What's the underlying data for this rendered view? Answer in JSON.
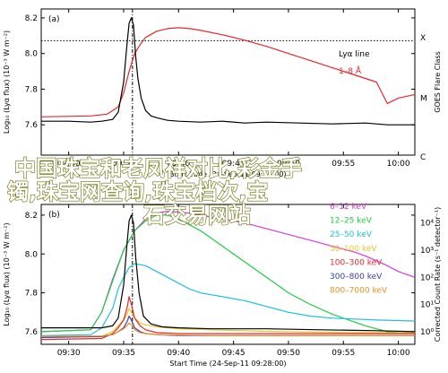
{
  "overlay": {
    "lines": [
      "中国珠宝和老凤祥对比,彩金手",
      "镯,珠宝网查询,珠宝档次,宝",
      "石交易网站"
    ],
    "color": "#ffffff"
  },
  "chart_data": [
    {
      "type": "line",
      "panel_label": "(a)",
      "title": "",
      "xlabel": "Start Time (24-Sep-11 09:28:00)",
      "ylabel": "Log₁₀ (Lyα flux) (10⁻³ W m⁻²)",
      "ylabel_right": "GOES Flare Class",
      "xlim": [
        -0.5,
        33.5
      ],
      "ylim": [
        7.43,
        8.25
      ],
      "x_ticks": [
        2,
        7,
        12,
        17,
        22,
        27,
        32
      ],
      "x_ticklabels": [
        "09:30",
        "09:35",
        "09:40",
        "09:45",
        "09:50",
        "09:55",
        "10:00"
      ],
      "y_ticks": [
        7.6,
        7.8,
        8.0,
        8.2
      ],
      "y_ticklabels": [
        "7.6",
        "7.8",
        "8.0",
        "8.2"
      ],
      "right_ticks": [
        {
          "label": "X",
          "value": 8.09
        },
        {
          "label": "M",
          "value": 7.75
        },
        {
          "label": "C",
          "value": 7.42
        }
      ],
      "hline": 8.072,
      "vline": 7.8,
      "legend": {
        "position": "right",
        "entries": [
          "Lyα line",
          "1–8 Å"
        ]
      },
      "series": [
        {
          "name": "Lyα line",
          "color": "#000000",
          "x": [
            -0.5,
            2,
            4,
            5,
            6,
            6.5,
            7,
            7.3,
            7.5,
            7.7,
            7.9,
            8.1,
            8.3,
            8.6,
            9,
            9.5,
            10,
            11,
            12,
            14,
            16,
            18,
            20,
            23,
            26,
            29,
            31,
            33.5
          ],
          "y": [
            7.62,
            7.62,
            7.615,
            7.62,
            7.63,
            7.67,
            7.84,
            8.05,
            8.17,
            8.2,
            8.16,
            7.98,
            7.86,
            7.75,
            7.68,
            7.65,
            7.64,
            7.625,
            7.62,
            7.615,
            7.62,
            7.61,
            7.615,
            7.61,
            7.605,
            7.61,
            7.6,
            7.6
          ]
        },
        {
          "name": "1–8 Å",
          "color": "#e8262a",
          "x": [
            -0.5,
            4,
            5.5,
            6.5,
            7,
            7.5,
            8,
            8.5,
            9,
            10,
            11,
            12,
            13,
            14,
            16,
            18,
            20,
            22,
            24,
            26,
            28,
            30,
            31,
            32,
            33.5
          ],
          "y": [
            7.645,
            7.65,
            7.66,
            7.7,
            7.78,
            7.9,
            8.0,
            8.05,
            8.09,
            8.125,
            8.14,
            8.145,
            8.14,
            8.13,
            8.105,
            8.075,
            8.04,
            8.0,
            7.96,
            7.92,
            7.88,
            7.84,
            7.72,
            7.75,
            7.77
          ]
        }
      ]
    },
    {
      "type": "line",
      "panel_label": "(b)",
      "title": "",
      "xlabel": "Start Time (24-Sep-11 09:28:00)",
      "ylabel": "Log₁₀ (Lyα flux) (10⁻³ W m⁻²)",
      "ylabel_right": "Corrected Count Rate (s⁻¹ detector⁻¹)",
      "xlim": [
        -0.5,
        33.5
      ],
      "ylim": [
        7.535,
        8.255
      ],
      "y_ticks": [
        7.6,
        7.8,
        8.0,
        8.2
      ],
      "y_ticklabels": [
        "7.6",
        "7.8",
        "8.0",
        "8.2"
      ],
      "right_ticks": [
        {
          "label": "10⁰",
          "value": 7.6
        },
        {
          "label": "10¹",
          "value": 7.74
        },
        {
          "label": "10²",
          "value": 7.88
        },
        {
          "label": "10³",
          "value": 8.02
        },
        {
          "label": "10⁴",
          "value": 8.16
        }
      ],
      "vline": 7.8,
      "legend": {
        "position": "right",
        "entries": [
          "6–12 keV",
          "12–25 keV",
          "25–50 keV",
          "50–100 keV",
          "100–300 keV",
          "300–800 keV",
          "800–7000 keV"
        ]
      },
      "series": [
        {
          "name": "Lyα line",
          "color": "#000000",
          "x": [
            -0.5,
            5,
            6,
            6.5,
            7,
            7.3,
            7.5,
            7.7,
            7.9,
            8.1,
            8.4,
            8.8,
            9.5,
            10.5,
            12,
            15,
            20,
            25,
            30,
            33.5
          ],
          "y": [
            7.62,
            7.62,
            7.63,
            7.67,
            7.84,
            8.05,
            8.17,
            8.2,
            8.16,
            7.98,
            7.8,
            7.68,
            7.64,
            7.625,
            7.62,
            7.615,
            7.615,
            7.61,
            7.605,
            7.6
          ]
        },
        {
          "name": "6–12 keV",
          "color": "#d63bd6",
          "x": [
            -0.5,
            4,
            5,
            6,
            7,
            8,
            9,
            10,
            11,
            12,
            13,
            14,
            15,
            16,
            17,
            18,
            19,
            20,
            21,
            22,
            23,
            24,
            25,
            26,
            27,
            28,
            29,
            30,
            31,
            32,
            33.5
          ],
          "y": [
            7.6,
            7.61,
            7.7,
            7.87,
            8.02,
            8.12,
            8.18,
            8.21,
            8.22,
            8.215,
            8.21,
            8.2,
            8.19,
            8.18,
            8.17,
            8.16,
            8.145,
            8.13,
            8.115,
            8.1,
            8.085,
            8.07,
            8.055,
            8.04,
            8.025,
            8.01,
            7.99,
            7.965,
            7.94,
            7.91,
            7.88
          ]
        },
        {
          "name": "12–25 keV",
          "color": "#22cc44",
          "x": [
            -0.5,
            4,
            5,
            6,
            7,
            8,
            9,
            10,
            11,
            12,
            13,
            14,
            15,
            16,
            17,
            18,
            19,
            20,
            21,
            22,
            23,
            24,
            25,
            26,
            27,
            28,
            29,
            30,
            31,
            32,
            33.5
          ],
          "y": [
            7.6,
            7.61,
            7.7,
            7.86,
            8.02,
            8.12,
            8.17,
            8.2,
            8.2,
            8.18,
            8.15,
            8.12,
            8.08,
            8.04,
            8.0,
            7.96,
            7.92,
            7.88,
            7.84,
            7.8,
            7.77,
            7.74,
            7.715,
            7.69,
            7.67,
            7.65,
            7.63,
            7.615,
            7.6,
            7.595,
            7.59
          ]
        },
        {
          "name": "25–50 keV",
          "color": "#22c0e0",
          "x": [
            -0.5,
            4,
            5,
            6,
            6.5,
            7,
            7.5,
            8,
            9,
            10,
            11,
            12,
            13,
            14,
            15,
            16,
            17,
            18,
            19,
            20,
            21,
            22,
            23,
            24,
            26,
            28,
            30,
            33.5
          ],
          "y": [
            7.58,
            7.585,
            7.62,
            7.72,
            7.82,
            7.88,
            7.93,
            7.95,
            7.94,
            7.91,
            7.88,
            7.85,
            7.82,
            7.8,
            7.79,
            7.78,
            7.77,
            7.76,
            7.745,
            7.73,
            7.715,
            7.7,
            7.69,
            7.68,
            7.67,
            7.665,
            7.66,
            7.655
          ]
        },
        {
          "name": "50–100 keV",
          "color": "#e6c829",
          "x": [
            -0.5,
            5,
            6,
            6.5,
            7,
            7.3,
            7.5,
            7.7,
            8,
            8.5,
            9,
            10,
            12,
            15,
            18,
            21,
            24,
            27,
            30,
            33.5
          ],
          "y": [
            7.57,
            7.575,
            7.6,
            7.63,
            7.66,
            7.69,
            7.72,
            7.7,
            7.67,
            7.645,
            7.635,
            7.625,
            7.615,
            7.61,
            7.605,
            7.6,
            7.598,
            7.596,
            7.595,
            7.595
          ]
        },
        {
          "name": "100–300 keV",
          "color": "#e8262a",
          "x": [
            -0.5,
            5,
            6,
            6.5,
            7,
            7.3,
            7.5,
            7.7,
            8,
            8.5,
            9,
            10,
            12,
            15,
            18,
            21,
            24,
            27,
            30,
            33.5
          ],
          "y": [
            7.56,
            7.565,
            7.59,
            7.62,
            7.66,
            7.72,
            7.78,
            7.74,
            7.67,
            7.63,
            7.61,
            7.595,
            7.59,
            7.59,
            7.59,
            7.59,
            7.59,
            7.59,
            7.59,
            7.59
          ]
        },
        {
          "name": "300–800 keV",
          "color": "#3b3bb0",
          "x": [
            -0.5,
            5,
            6,
            6.5,
            7,
            7.3,
            7.5,
            7.7,
            8,
            8.5,
            9,
            10,
            12,
            15,
            18,
            21,
            24,
            27,
            30,
            33.5
          ],
          "y": [
            7.57,
            7.575,
            7.585,
            7.6,
            7.62,
            7.65,
            7.68,
            7.66,
            7.62,
            7.6,
            7.59,
            7.585,
            7.58,
            7.58,
            7.58,
            7.58,
            7.58,
            7.58,
            7.58,
            7.58
          ]
        },
        {
          "name": "800–7000 keV",
          "color": "#e89225",
          "x": [
            -0.5,
            5,
            6,
            6.5,
            7,
            7.3,
            7.5,
            7.7,
            8,
            8.5,
            9,
            10,
            12,
            15,
            18,
            21,
            24,
            27,
            30,
            33.5
          ],
          "y": [
            7.575,
            7.578,
            7.585,
            7.6,
            7.615,
            7.63,
            7.645,
            7.635,
            7.61,
            7.595,
            7.59,
            7.585,
            7.582,
            7.58,
            7.58,
            7.58,
            7.58,
            7.58,
            7.58,
            7.58
          ]
        }
      ]
    }
  ]
}
